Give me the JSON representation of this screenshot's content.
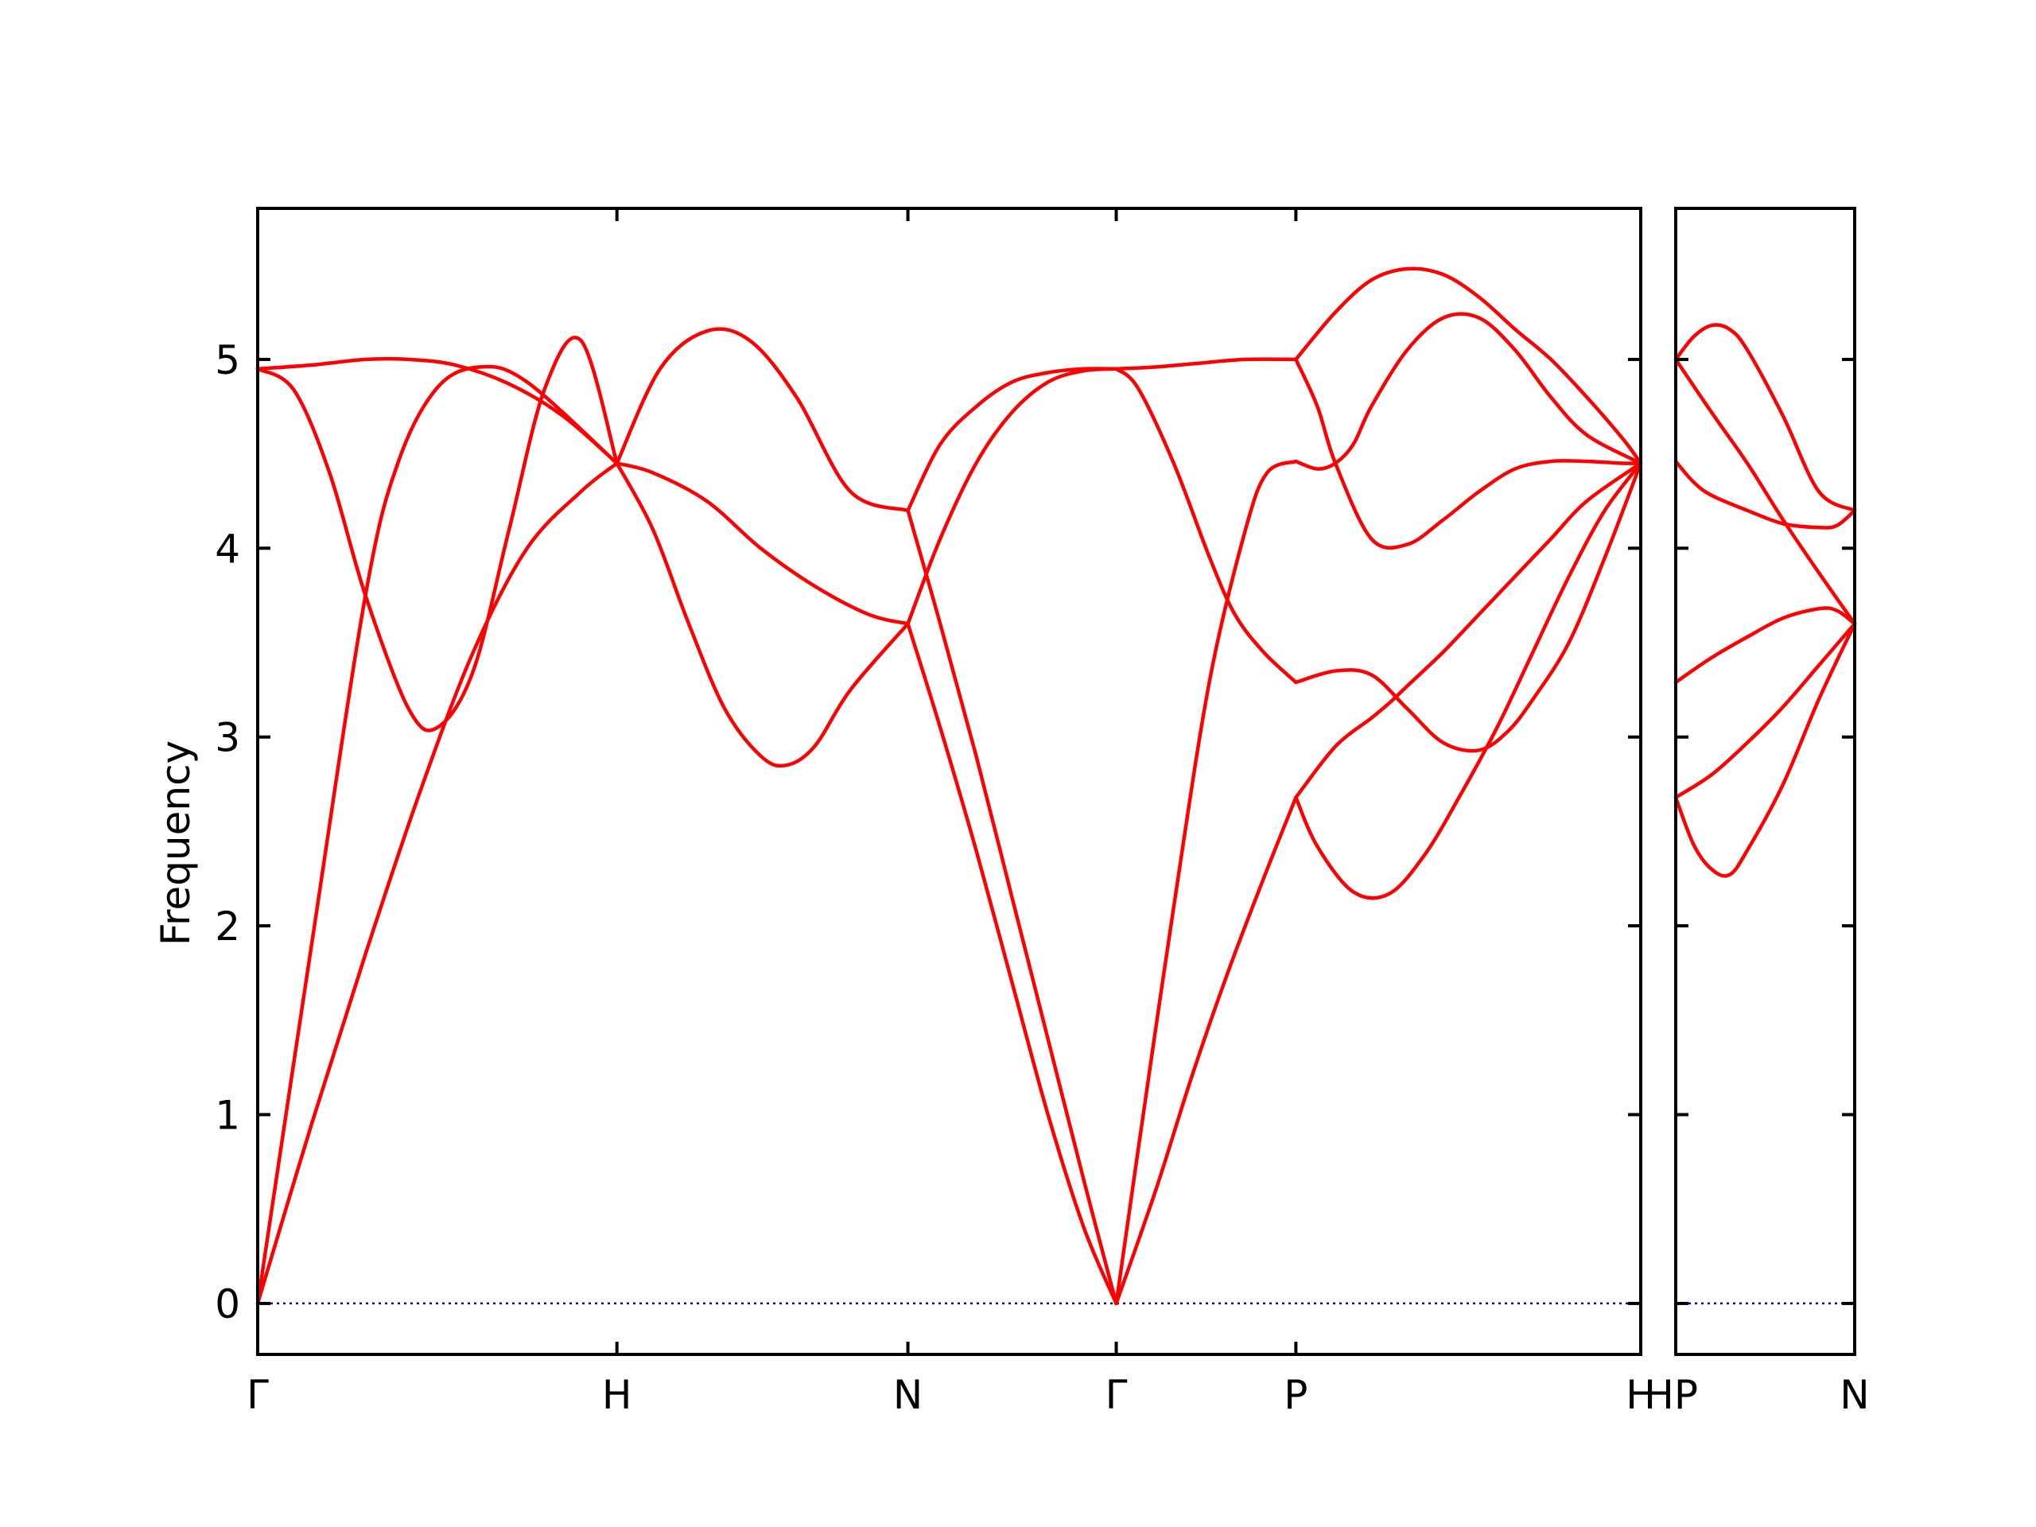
{
  "chart_data": {
    "type": "line",
    "title": "",
    "ylabel": "Frequency",
    "xlabel": "",
    "ylim": [
      -0.27,
      5.8
    ],
    "yticks": [
      0,
      1,
      2,
      3,
      4,
      5
    ],
    "ytick_labels": [
      "0",
      "1",
      "2",
      "3",
      "4",
      "5"
    ],
    "grid": false,
    "legend": "none",
    "colors": {
      "bands": "#ff0000",
      "zero_line": "#00008b",
      "axes": "#000000"
    },
    "panels": [
      {
        "name": "main",
        "x_range": [
          0,
          3.85
        ],
        "high_symmetry_points": [
          {
            "label": "Γ",
            "x": 0
          },
          {
            "label": "H",
            "x": 1
          },
          {
            "label": "N",
            "x": 1.81
          },
          {
            "label": "Γ",
            "x": 2.39
          },
          {
            "label": "P",
            "x": 2.89
          },
          {
            "label": "H",
            "x": 3.85
          }
        ],
        "series": [
          {
            "x": [
              0,
              0.1,
              0.2,
              0.3,
              0.42,
              0.5,
              0.6,
              0.7,
              0.8,
              0.9,
              1.0
            ],
            "y": [
              4.95,
              4.84,
              4.4,
              3.75,
              3.15,
              3.05,
              3.35,
              4.1,
              4.85,
              5.1,
              4.45
            ]
          },
          {
            "x": [
              0,
              0.15,
              0.3,
              0.39,
              0.5,
              0.62,
              0.75,
              1.0
            ],
            "y": [
              0,
              1.9,
              3.75,
              4.45,
              4.85,
              4.96,
              4.88,
              4.45
            ]
          },
          {
            "x": [
              0,
              0.15,
              0.3,
              0.45,
              0.6,
              0.75,
              0.9,
              1.0
            ],
            "y": [
              0,
              0.95,
              1.85,
              2.7,
              3.45,
              4.0,
              4.3,
              4.45
            ]
          },
          {
            "x": [
              0,
              0.15,
              0.3,
              0.42,
              0.55,
              0.7,
              0.85,
              1.0
            ],
            "y": [
              4.95,
              4.97,
              5.0,
              5.0,
              4.97,
              4.87,
              4.7,
              4.45
            ]
          },
          {
            "x": [
              1.0,
              1.12,
              1.25,
              1.37,
              1.5,
              1.65,
              1.81
            ],
            "y": [
              4.45,
              4.95,
              5.15,
              5.1,
              4.8,
              4.3,
              4.2
            ]
          },
          {
            "x": [
              1.0,
              1.1,
              1.25,
              1.4,
              1.55,
              1.7,
              1.81
            ],
            "y": [
              4.45,
              4.4,
              4.25,
              4.0,
              3.8,
              3.65,
              3.6
            ]
          },
          {
            "x": [
              1.0,
              1.1,
              1.2,
              1.3,
              1.4,
              1.47,
              1.55,
              1.65,
              1.81
            ],
            "y": [
              4.45,
              4.1,
              3.6,
              3.15,
              2.9,
              2.85,
              2.95,
              3.25,
              3.6
            ]
          },
          {
            "x": [
              1.81,
              1.9,
              2.0,
              2.1,
              2.2,
              2.3,
              2.39
            ],
            "y": [
              4.2,
              3.6,
              2.9,
              2.15,
              1.4,
              0.65,
              0
            ]
          },
          {
            "x": [
              1.81,
              1.9,
              2.0,
              2.1,
              2.2,
              2.3,
              2.39
            ],
            "y": [
              3.6,
              3.05,
              2.4,
              1.7,
              1.0,
              0.4,
              0
            ]
          },
          {
            "x": [
              1.81,
              1.9,
              2.0,
              2.1,
              2.2,
              2.3,
              2.39
            ],
            "y": [
              3.6,
              4.05,
              4.45,
              4.72,
              4.88,
              4.94,
              4.95
            ]
          },
          {
            "x": [
              1.81,
              1.9,
              2.0,
              2.1,
              2.2,
              2.3,
              2.39
            ],
            "y": [
              4.2,
              4.55,
              4.75,
              4.88,
              4.93,
              4.95,
              4.95
            ]
          },
          {
            "x": [
              2.39,
              2.45,
              2.55,
              2.65,
              2.75,
              2.81,
              2.89
            ],
            "y": [
              0,
              0.8,
              2.1,
              3.3,
              4.1,
              4.4,
              4.46
            ]
          },
          {
            "x": [
              2.39,
              2.5,
              2.6,
              2.7,
              2.8,
              2.89
            ],
            "y": [
              0,
              0.6,
              1.2,
              1.75,
              2.25,
              2.68
            ]
          },
          {
            "x": [
              2.39,
              2.45,
              2.55,
              2.65,
              2.72,
              2.8,
              2.89
            ],
            "y": [
              4.95,
              4.85,
              4.45,
              3.95,
              3.65,
              3.45,
              3.29
            ]
          },
          {
            "x": [
              2.39,
              2.5,
              2.62,
              2.75,
              2.89
            ],
            "y": [
              4.95,
              4.96,
              4.98,
              5.0,
              5.0
            ]
          },
          {
            "x": [
              2.89,
              2.95,
              3.0,
              3.05,
              3.1,
              3.2,
              3.3,
              3.4,
              3.5,
              3.6,
              3.7,
              3.85
            ],
            "y": [
              4.46,
              4.42,
              4.45,
              4.55,
              4.75,
              5.05,
              5.22,
              5.22,
              5.05,
              4.8,
              4.6,
              4.45
            ]
          },
          {
            "x": [
              2.89,
              2.95,
              3.0,
              3.1,
              3.2,
              3.3,
              3.4,
              3.5,
              3.6,
              3.7,
              3.8,
              3.85
            ],
            "y": [
              5.0,
              4.75,
              4.45,
              4.05,
              4.02,
              4.15,
              4.3,
              4.42,
              4.46,
              4.46,
              4.45,
              4.45
            ]
          },
          {
            "x": [
              2.89,
              3.0,
              3.1,
              3.2,
              3.3,
              3.4,
              3.5,
              3.6,
              3.7,
              3.8,
              3.85
            ],
            "y": [
              5.0,
              5.25,
              5.42,
              5.48,
              5.45,
              5.33,
              5.16,
              5.0,
              4.8,
              4.58,
              4.45
            ]
          },
          {
            "x": [
              2.89,
              3.0,
              3.1,
              3.2,
              3.3,
              3.4,
              3.48,
              3.55,
              3.65,
              3.75,
              3.85
            ],
            "y": [
              3.29,
              3.35,
              3.33,
              3.15,
              2.97,
              2.93,
              3.03,
              3.2,
              3.5,
              3.95,
              4.45
            ]
          },
          {
            "x": [
              2.89,
              3.0,
              3.1,
              3.15,
              3.2,
              3.3,
              3.4,
              3.5,
              3.6,
              3.7,
              3.85
            ],
            "y": [
              2.68,
              2.95,
              3.1,
              3.18,
              3.27,
              3.45,
              3.65,
              3.85,
              4.05,
              4.25,
              4.45
            ]
          },
          {
            "x": [
              2.89,
              2.95,
              3.05,
              3.15,
              3.25,
              3.35,
              3.45,
              3.55,
              3.65,
              3.75,
              3.85
            ],
            "y": [
              2.68,
              2.42,
              2.18,
              2.17,
              2.38,
              2.7,
              3.05,
              3.45,
              3.85,
              4.2,
              4.45
            ]
          }
        ]
      },
      {
        "name": "side",
        "x_range": [
          0,
          0.5
        ],
        "high_symmetry_points": [
          {
            "label": "HP",
            "x": 0
          },
          {
            "label": "N",
            "x": 0.5
          }
        ],
        "series": [
          {
            "x": [
              0,
              0.05,
              0.1,
              0.15,
              0.2,
              0.3,
              0.4,
              0.5
            ],
            "y": [
              5.0,
              5.12,
              5.18,
              5.16,
              5.05,
              4.7,
              4.3,
              4.2
            ]
          },
          {
            "x": [
              0,
              0.1,
              0.2,
              0.3,
              0.4,
              0.5
            ],
            "y": [
              5.0,
              4.72,
              4.45,
              4.15,
              3.87,
              3.6
            ]
          },
          {
            "x": [
              0,
              0.05,
              0.1,
              0.2,
              0.3,
              0.4,
              0.45,
              0.5
            ],
            "y": [
              4.46,
              4.35,
              4.28,
              4.2,
              4.13,
              4.11,
              4.12,
              4.2
            ]
          },
          {
            "x": [
              0,
              0.1,
              0.2,
              0.3,
              0.4,
              0.45,
              0.5
            ],
            "y": [
              3.29,
              3.42,
              3.53,
              3.63,
              3.68,
              3.67,
              3.6
            ]
          },
          {
            "x": [
              0,
              0.1,
              0.2,
              0.3,
              0.4,
              0.5
            ],
            "y": [
              2.68,
              2.8,
              2.97,
              3.16,
              3.38,
              3.6
            ]
          },
          {
            "x": [
              0,
              0.05,
              0.1,
              0.15,
              0.2,
              0.3,
              0.4,
              0.5
            ],
            "y": [
              2.68,
              2.43,
              2.3,
              2.27,
              2.4,
              2.75,
              3.2,
              3.6
            ]
          }
        ]
      }
    ]
  }
}
